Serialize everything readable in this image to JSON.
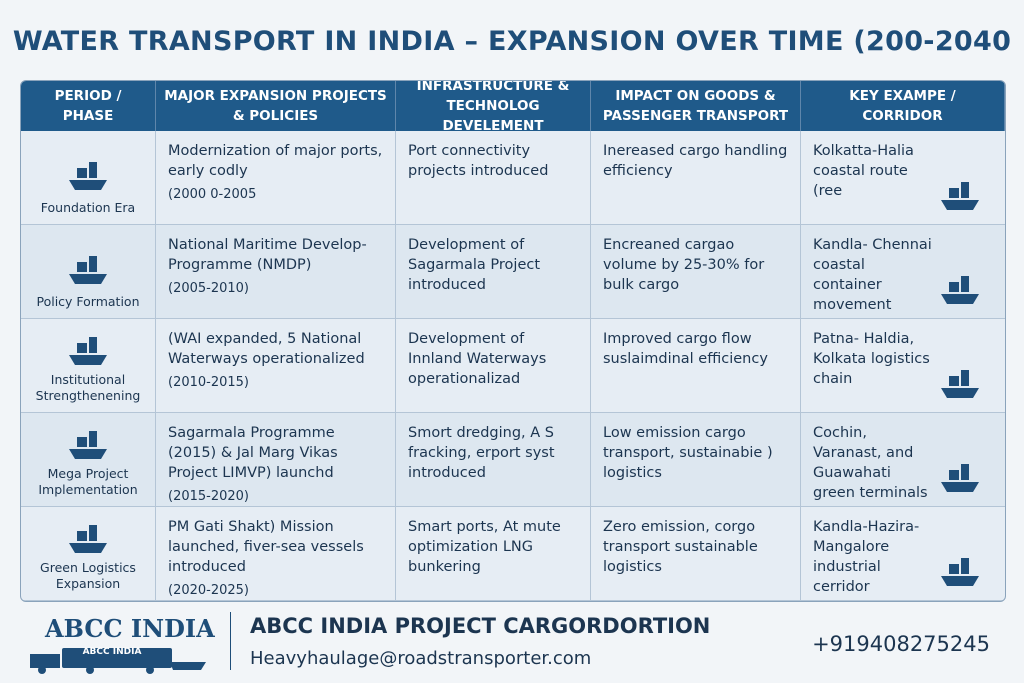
{
  "title": "WATER TRANSPORT IN INDIA – EXPANSION OVER TIME (200-2040",
  "table": {
    "headers": [
      "PERIOD / PHASE",
      "MAJOR EXPANSION PROJECTS & POLICIES",
      "INFRASTRUCTURE & TECHNOLOG DEVELEMENT",
      "IMPACT ON GOODS & PASSENGER TRANSPORT",
      "KEY EXAMPE / CORRIDOR"
    ],
    "rows": [
      {
        "phase": "Foundation Era",
        "projects": "Modernization of major ports, early codly",
        "period": "(2000 0-2005",
        "infrastructure": "Port connectivity projects introduced",
        "impact": "Inereased cargo handling efficiency",
        "example": "Kolkatta-Halia coastal route (ree"
      },
      {
        "phase": "Policy Formation",
        "projects": "National Maritime Develop-Programme (NMDP)",
        "period": "(2005-2010)",
        "infrastructure": "Development of Sagarmala Project introduced",
        "impact": "Encreaned cargao volume by 25-30% for bulk cargo",
        "example": "Kandla- Chennai coastal container movement"
      },
      {
        "phase": "Institutional Strengthenening",
        "projects": "(WAI expanded, 5 National Waterways operationalized",
        "period": "(2010-2015)",
        "infrastructure": "Development of Innland Waterways operationalizad",
        "impact": "Improved cargo flow suslaimdinal efficiency",
        "example": "Patna- Haldia, Kolkata logistics chain"
      },
      {
        "phase": "Mega Project Implementation",
        "projects": "Sagarmala Programme (2015) & Jal Marg Vikas Project LIMVP) launchd",
        "period": "(2015-2020)",
        "infrastructure": "Smort dredging, A S fracking, erport syst introduced",
        "impact": "Low emission cargo transport, sustainabie ) logistics",
        "example": "Cochin, Varanast, and Guawahati green terminals"
      },
      {
        "phase": "Green Logistics Expansion",
        "projects": "PM Gati Shakt) Mission launched, fiver-sea vessels introduced",
        "period": "(2020-2025)",
        "infrastructure": "Smart ports, At mute optimization LNG bunkering",
        "impact": "Zero emission, corgo transport sustainable logistics",
        "example": "Kandla-Hazira-Mangalore industrial cerridor"
      }
    ]
  },
  "footer": {
    "logo": "ABCC INDIA",
    "logo_badge": "ABCC INDIA",
    "company": "ABCC INDIA PROJECT CARGORDORTION",
    "email": "Heavyhaulage@roadstransporter.com",
    "phone": "+919408275245"
  }
}
